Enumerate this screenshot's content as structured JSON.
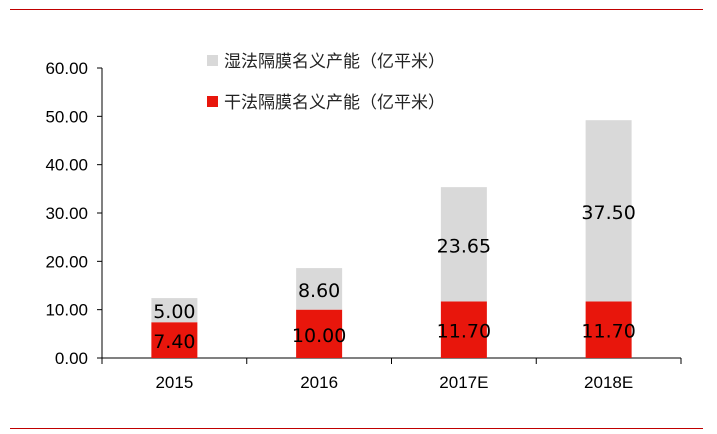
{
  "colors": {
    "accent_rule": "#c00000",
    "wet": "#d9d9d9",
    "dry": "#e8160c",
    "axis": "#000000"
  },
  "chart_data": {
    "type": "bar",
    "stacked": true,
    "title": "",
    "xlabel": "",
    "ylabel": "",
    "categories": [
      "2015",
      "2016",
      "2017E",
      "2018E"
    ],
    "series": [
      {
        "name": "干法隔膜名义产能（亿平米）",
        "color": "#e8160c",
        "values": [
          7.4,
          10.0,
          11.7,
          11.7
        ]
      },
      {
        "name": "湿法隔膜名义产能（亿平米）",
        "color": "#d9d9d9",
        "values": [
          5.0,
          8.6,
          23.65,
          37.5
        ]
      }
    ],
    "data_labels": [
      [
        "7.40",
        "10.00",
        "11.70",
        "11.70"
      ],
      [
        "5.00",
        "8.60",
        "23.65",
        "37.50"
      ]
    ],
    "ylim": [
      0,
      60
    ],
    "yticks": [
      "0.00",
      "10.00",
      "20.00",
      "30.00",
      "40.00",
      "50.00",
      "60.00"
    ],
    "legend": [
      "湿法隔膜名义产能（亿平米）",
      "干法隔膜名义产能（亿平米）"
    ],
    "legend_position": "top-center",
    "grid": false
  }
}
